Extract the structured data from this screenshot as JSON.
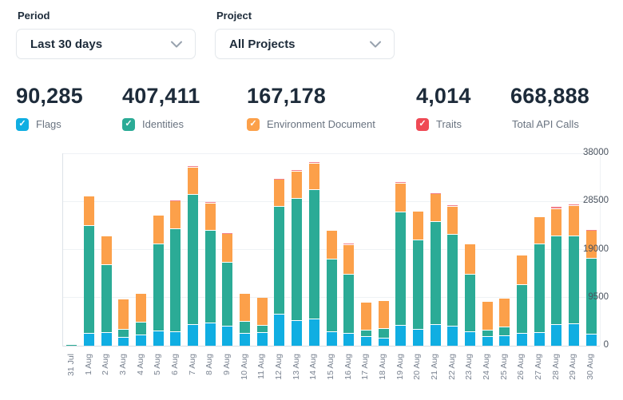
{
  "filters": {
    "period": {
      "label": "Period",
      "value": "Last 30 days"
    },
    "project": {
      "label": "Project",
      "value": "All Projects"
    }
  },
  "stats": {
    "items": [
      {
        "value": "90,285",
        "label": "Flags",
        "color": "#10AEE2",
        "has_checkbox": true
      },
      {
        "value": "407,411",
        "label": "Identities",
        "color": "#2BAB96",
        "has_checkbox": true
      },
      {
        "value": "167,178",
        "label": "Environment Document",
        "color": "#FCA04A",
        "has_checkbox": true
      },
      {
        "value": "4,014",
        "label": "Traits",
        "color": "#EF4A55",
        "has_checkbox": true
      },
      {
        "value": "668,888",
        "label": "Total API Calls",
        "color": null,
        "has_checkbox": false
      }
    ]
  },
  "chart_data": {
    "type": "bar",
    "stacked": true,
    "title": "",
    "xlabel": "",
    "ylabel": "",
    "ylim": [
      0,
      38000
    ],
    "yticks": [
      0,
      9500,
      19000,
      28500,
      38000
    ],
    "grid": true,
    "legend_position": "none",
    "categories": [
      "31 Jul",
      "1 Aug",
      "2 Aug",
      "3 Aug",
      "4 Aug",
      "5 Aug",
      "6 Aug",
      "7 Aug",
      "8 Aug",
      "9 Aug",
      "10 Aug",
      "11 Aug",
      "12 Aug",
      "13 Aug",
      "14 Aug",
      "15 Aug",
      "16 Aug",
      "17 Aug",
      "18 Aug",
      "19 Aug",
      "20 Aug",
      "21 Aug",
      "22 Aug",
      "23 Aug",
      "24 Aug",
      "25 Aug",
      "26 Aug",
      "27 Aug",
      "28 Aug",
      "29 Aug",
      "30 Aug"
    ],
    "series": [
      {
        "name": "Flags",
        "color": "#10AEE2",
        "values": [
          80,
          2350,
          2470,
          1530,
          2050,
          2840,
          2630,
          4050,
          4420,
          3780,
          2320,
          2520,
          6150,
          4890,
          5140,
          2620,
          2410,
          1730,
          1470,
          3940,
          3150,
          4050,
          3830,
          2630,
          1730,
          1840,
          2320,
          2570,
          4050,
          4210,
          2210
        ]
      },
      {
        "name": "Identities",
        "color": "#2BAB96",
        "values": [
          140,
          21300,
          13400,
          1620,
          2480,
          17140,
          20440,
          25800,
          18290,
          12620,
          2410,
          1360,
          21290,
          24180,
          25610,
          14350,
          11670,
          1310,
          1840,
          22390,
          17600,
          20350,
          18140,
          11400,
          1310,
          1830,
          9620,
          17410,
          17500,
          17440,
          14980
        ]
      },
      {
        "name": "Environment Document",
        "color": "#FCA04A",
        "values": [
          0,
          5850,
          5780,
          5990,
          5670,
          5720,
          5420,
          5270,
          5310,
          5680,
          5470,
          5580,
          5300,
          5250,
          5200,
          5790,
          5730,
          5470,
          5470,
          5680,
          5680,
          5500,
          5520,
          5950,
          5630,
          5630,
          5830,
          5360,
          5460,
          5900,
          5520
        ]
      },
      {
        "name": "Traits",
        "color": "#F2808A",
        "values": [
          0,
          0,
          0,
          0,
          0,
          0,
          200,
          320,
          320,
          200,
          0,
          0,
          150,
          320,
          320,
          0,
          320,
          0,
          0,
          320,
          0,
          250,
          320,
          0,
          0,
          0,
          0,
          0,
          380,
          320,
          150
        ]
      }
    ]
  }
}
